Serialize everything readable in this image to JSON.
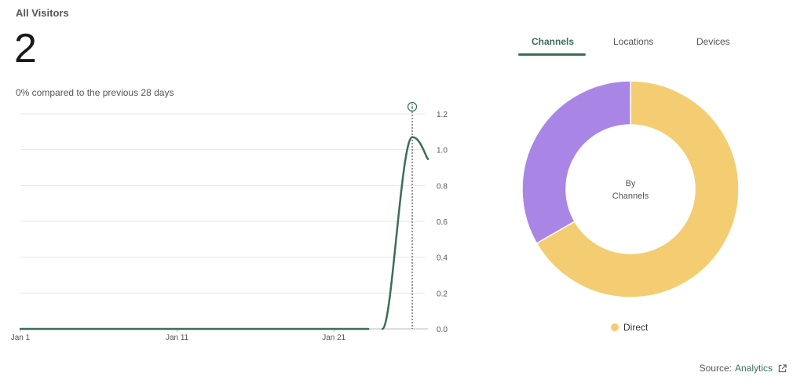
{
  "card": {
    "title": "All Visitors",
    "total": "2",
    "comparison": "0% compared to the previous 28 days"
  },
  "tabs": [
    {
      "label": "Channels",
      "active": true
    },
    {
      "label": "Locations",
      "active": false
    },
    {
      "label": "Devices",
      "active": false
    }
  ],
  "source": {
    "prefix": "Source:",
    "link_label": "Analytics",
    "icon": "external-link-icon"
  },
  "colors": {
    "line": "#3c6e57",
    "grid": "#e6e6e6",
    "direct": "#f4cd72",
    "other": "#a986e6",
    "accent": "#3c6e57"
  },
  "chart_data": [
    {
      "type": "line",
      "x_ticks": [
        "Jan 1",
        "Jan 11",
        "Jan 21"
      ],
      "x_range": [
        1,
        27
      ],
      "y_ticks": [
        "0.0",
        "0.2",
        "0.4",
        "0.6",
        "0.8",
        "1.0",
        "1.2"
      ],
      "ylim": [
        0,
        1.2
      ],
      "grid": true,
      "marker_icon": "info-icon",
      "marker_x": 26,
      "series": [
        {
          "x": [
            1,
            2,
            3,
            4,
            5,
            6,
            7,
            8,
            9,
            10,
            11,
            12,
            13,
            14,
            15,
            16,
            17,
            18,
            19,
            20,
            21,
            22,
            23,
            24,
            25,
            26,
            27
          ],
          "y": [
            0,
            0,
            0,
            0,
            0,
            0,
            0,
            0,
            0,
            0,
            0,
            0,
            0,
            0,
            0,
            0,
            0,
            0,
            0,
            0,
            0,
            0,
            0,
            0,
            0,
            1,
            1
          ]
        }
      ]
    },
    {
      "type": "pie",
      "donut": true,
      "center_label": [
        "By",
        "Channels"
      ],
      "slices": [
        {
          "name": "Direct",
          "value": 2,
          "color": "#f4cd72",
          "in_legend": true
        },
        {
          "name": "",
          "value": 1,
          "color": "#a986e6",
          "in_legend": false
        }
      ],
      "legend_position": "bottom"
    }
  ]
}
